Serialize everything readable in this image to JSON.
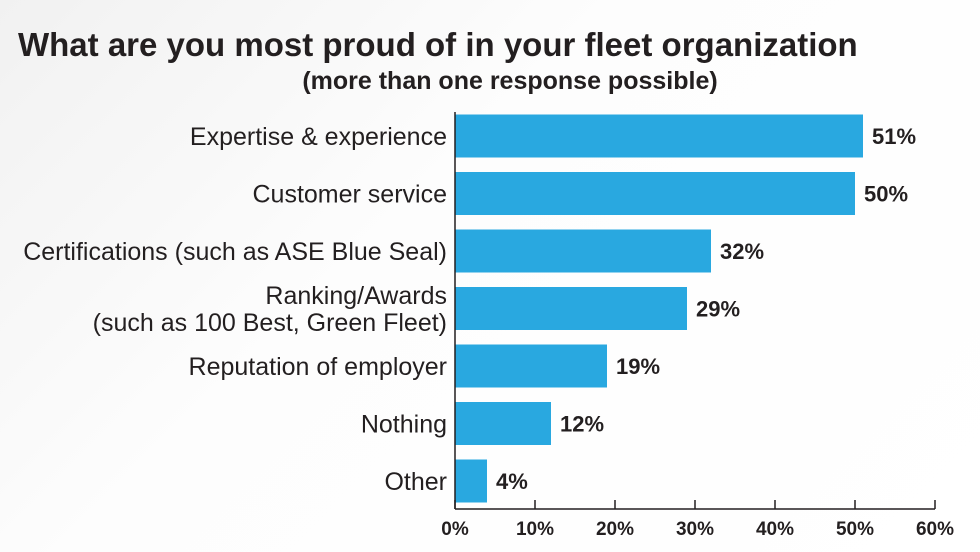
{
  "chart_data": {
    "type": "bar",
    "orientation": "horizontal",
    "title": "What are you most proud of in your fleet organization",
    "subtitle": "(more than one response possible)",
    "categories": [
      [
        "Expertise & experience"
      ],
      [
        "Customer service"
      ],
      [
        "Certifications (such as ASE Blue Seal)"
      ],
      [
        "Ranking/Awards",
        "(such as 100 Best, Green Fleet)"
      ],
      [
        "Reputation of employer"
      ],
      [
        "Nothing"
      ],
      [
        "Other"
      ]
    ],
    "values": [
      51,
      50,
      32,
      29,
      19,
      12,
      4
    ],
    "value_labels": [
      "51%",
      "50%",
      "32%",
      "29%",
      "19%",
      "12%",
      "4%"
    ],
    "xlim": [
      0,
      60
    ],
    "xticks": [
      0,
      10,
      20,
      30,
      40,
      50,
      60
    ],
    "xtick_labels": [
      "0%",
      "10%",
      "20%",
      "30%",
      "40%",
      "50%",
      "60%"
    ],
    "xlabel": "",
    "ylabel": "",
    "grid": false,
    "bar_color": "#29a8e0"
  }
}
